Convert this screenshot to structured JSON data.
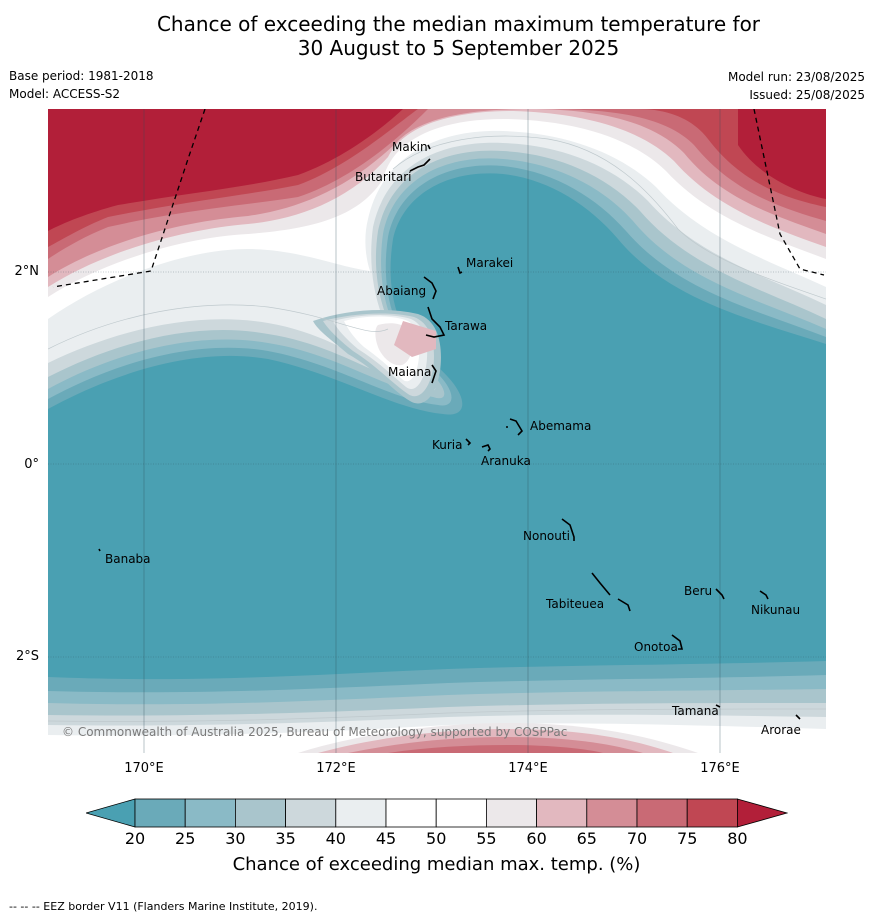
{
  "title_line1": "Chance of exceeding the median maximum temperature for",
  "title_line2": "30 August to 5 September 2025",
  "base_period": "Base period: 1981-2018",
  "model": "Model: ACCESS-S2",
  "model_run": "Model run: 23/08/2025",
  "issued": "Issued: 25/08/2025",
  "copyright": "© Commonwealth of Australia 2025, Bureau of Meteorology, supported by COSPPac",
  "lat_labels": [
    "2°N",
    "0°",
    "2°S"
  ],
  "lon_labels": [
    "170°E",
    "172°E",
    "174°E",
    "176°E"
  ],
  "places": [
    "Makin",
    "Butaritari",
    "Marakei",
    "Abaiang",
    "Tarawa",
    "Maiana",
    "Abemama",
    "Kuria",
    "Aranuka",
    "Nonouti",
    "Banaba",
    "Beru",
    "Tabiteuea",
    "Nikunau",
    "Onotoa",
    "Tamana",
    "Arorae"
  ],
  "colorbar": {
    "title": "Chance of exceeding median max. temp. (%)",
    "ticks": [
      "20",
      "25",
      "30",
      "35",
      "40",
      "45",
      "50",
      "55",
      "60",
      "65",
      "70",
      "75",
      "80"
    ],
    "colors": [
      "#4aa0b2",
      "#6aaab9",
      "#8abac6",
      "#a9c5cc",
      "#cdd8dc",
      "#eaeef0",
      "#ffffff",
      "#ffffff",
      "#ece8ea",
      "#e2b8bf",
      "#d48d96",
      "#c96a75",
      "#c04753",
      "#b21f39"
    ]
  },
  "footnote": "-- -- -- EEZ border V11 (Flanders Marine Institute, 2019)."
}
